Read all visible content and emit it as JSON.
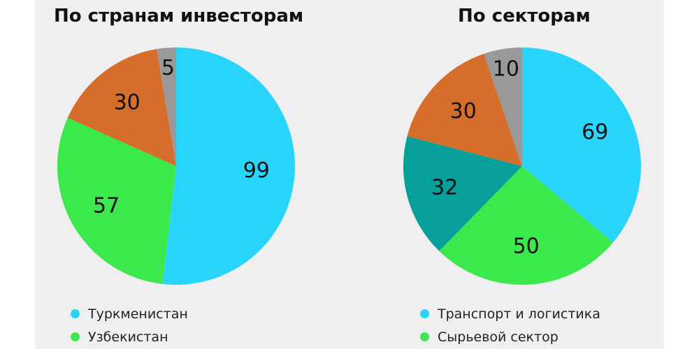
{
  "chart_data": [
    {
      "type": "pie",
      "title": "По странам инвесторам",
      "slices": [
        {
          "label": "Туркменистан",
          "value": 99,
          "color": "#29d4fb"
        },
        {
          "label": "Узбекистан",
          "value": 57,
          "color": "#3ce94d"
        },
        {
          "label": "",
          "value": 30,
          "color": "#d46e2a"
        },
        {
          "label": "",
          "value": 5,
          "color": "#999999"
        }
      ],
      "legend_position": "bottom"
    },
    {
      "type": "pie",
      "title": "По секторам",
      "slices": [
        {
          "label": "Транспорт и логистика",
          "value": 69,
          "color": "#29d4fb"
        },
        {
          "label": "Сырьевой сектор",
          "value": 50,
          "color": "#3ce94d"
        },
        {
          "label": "",
          "value": 32,
          "color": "#079f9a"
        },
        {
          "label": "",
          "value": 30,
          "color": "#d46e2a"
        },
        {
          "label": "",
          "value": 10,
          "color": "#999999"
        }
      ],
      "legend_position": "bottom"
    }
  ]
}
